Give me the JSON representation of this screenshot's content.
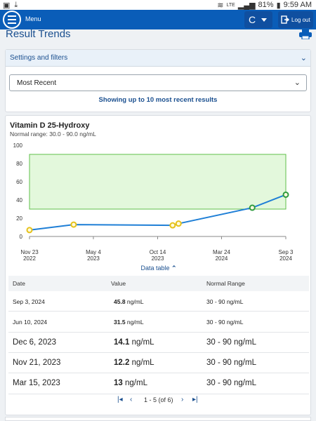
{
  "statusbar": {
    "left_icons": [
      "image-icon",
      "download-icon"
    ],
    "battery": "81%",
    "time": "9:59 AM",
    "network": "LTE"
  },
  "appbar": {
    "menu_label": "Menu",
    "avatar_initial": "C",
    "logout_label": "Log out",
    "bg_color": "#0a5db8"
  },
  "page": {
    "title": "Result Trends"
  },
  "settings": {
    "label": "Settings and filters",
    "selected": "Most Recent",
    "showing_text": "Showing up to 10 most recent results"
  },
  "test": {
    "name": "Vitamin D 25-Hydroxy",
    "normal_range_text": "Normal range: 30.0 - 90.0 ng/mL"
  },
  "chart_data": {
    "type": "line",
    "ylim": [
      0,
      100
    ],
    "yticks": [
      0,
      20,
      40,
      60,
      80,
      100
    ],
    "normal_band": [
      30,
      90
    ],
    "x_tick_labels": [
      {
        "date": "2022-11-23",
        "line1": "Nov 23",
        "line2": "2022"
      },
      {
        "date": "2023-05-04",
        "line1": "May 4",
        "line2": "2023"
      },
      {
        "date": "2023-10-14",
        "line1": "Oct 14",
        "line2": "2023"
      },
      {
        "date": "2024-03-24",
        "line1": "Mar 24",
        "line2": "2024"
      },
      {
        "date": "2024-09-03",
        "line1": "Sep 3",
        "line2": "2024"
      }
    ],
    "points": [
      {
        "date": "2022-11-23",
        "value": 7,
        "status": "low"
      },
      {
        "date": "2023-03-15",
        "value": 13,
        "status": "low"
      },
      {
        "date": "2023-11-21",
        "value": 12.2,
        "status": "low"
      },
      {
        "date": "2023-12-06",
        "value": 14.1,
        "status": "low"
      },
      {
        "date": "2024-06-10",
        "value": 31.5,
        "status": "normal"
      },
      {
        "date": "2024-09-03",
        "value": 45.8,
        "status": "normal"
      }
    ],
    "colors": {
      "line": "#1f7fd6",
      "band_fill": "#e3f8dc",
      "band_stroke": "#5fbf4a",
      "low_point": "#e6c21a",
      "normal_point": "#2e9b3e"
    }
  },
  "data_table": {
    "toggle_label": "Data table",
    "headers": {
      "date": "Date",
      "value": "Value",
      "range": "Normal Range"
    },
    "rows": [
      {
        "date": "Sep 3, 2024",
        "value": "45.8",
        "unit": "ng/mL",
        "range": "30 - 90 ng/mL"
      },
      {
        "date": "Jun 10, 2024",
        "value": "31.5",
        "unit": "ng/mL",
        "range": "30 - 90 ng/mL"
      },
      {
        "date": "Dec 6, 2023",
        "value": "14.1",
        "unit": "ng/mL",
        "range": "30 - 90 ng/mL"
      },
      {
        "date": "Nov 21, 2023",
        "value": "12.2",
        "unit": "ng/mL",
        "range": "30 - 90 ng/mL"
      },
      {
        "date": "Mar 15, 2023",
        "value": "13",
        "unit": "ng/mL",
        "range": "30 - 90 ng/mL"
      }
    ],
    "pagination": "1 - 5 (of 6)"
  }
}
